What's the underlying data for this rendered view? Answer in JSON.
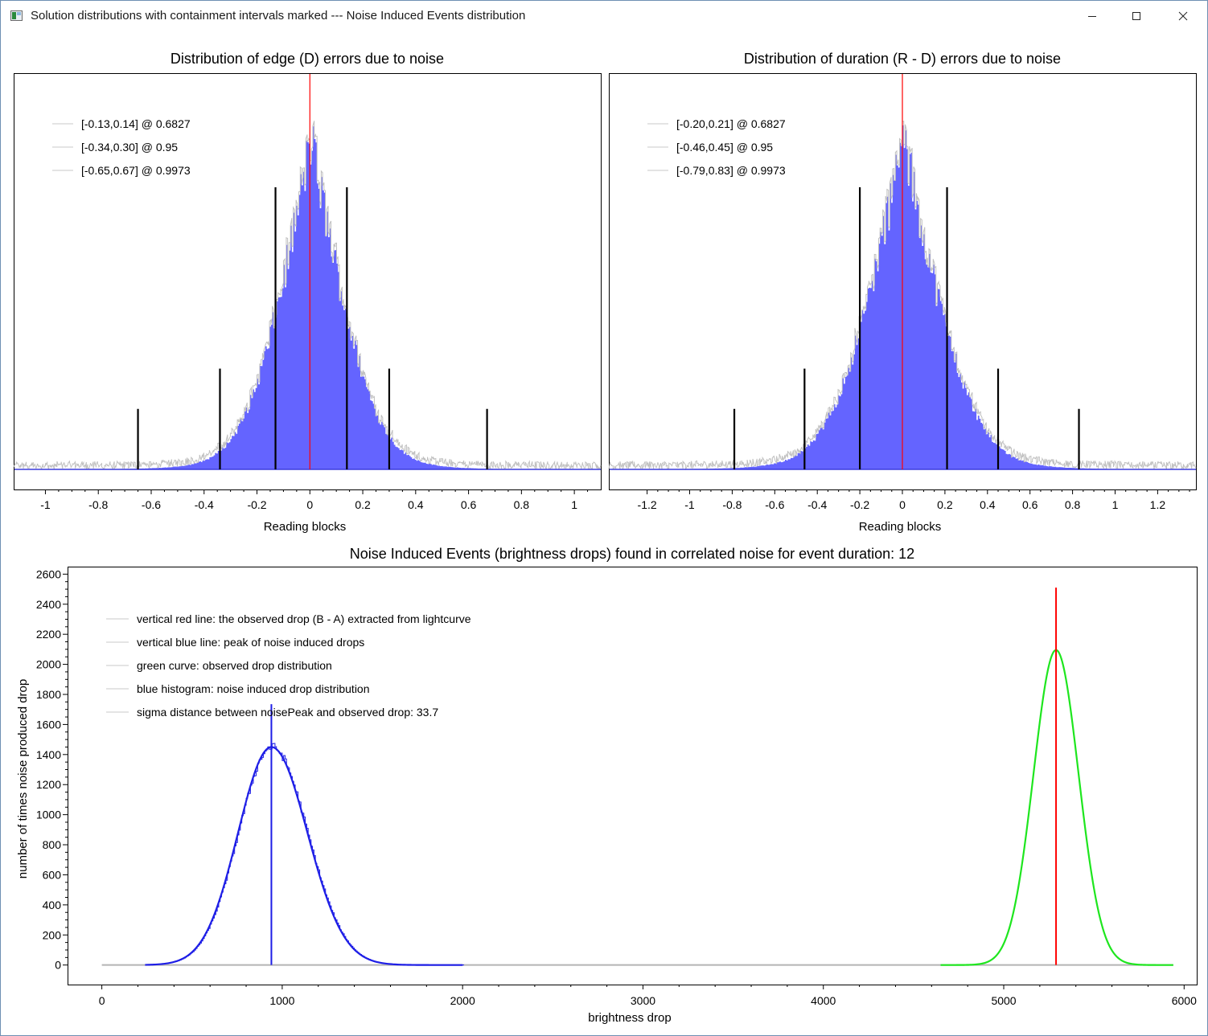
{
  "window": {
    "title": "Solution distributions with containment intervals marked --- Noise Induced Events distribution",
    "minimize_icon": "minimize-icon",
    "maximize_icon": "maximize-icon",
    "close_icon": "close-icon"
  },
  "chart_data": [
    {
      "type": "bar",
      "title": "Distribution of edge (D) errors due to noise",
      "xlabel": "Reading blocks",
      "ylabel": "",
      "xlim": [
        -1.12,
        1.1
      ],
      "xticks": [
        "-1",
        "-0.8",
        "-0.6",
        "-0.4",
        "-0.2",
        "0",
        "0.2",
        "0.4",
        "0.6",
        "0.8",
        "1"
      ],
      "grid": false,
      "legend_position": "top-left",
      "legend": [
        "[-0.13,0.14] @ 0.6827",
        "[-0.34,0.30] @ 0.95",
        "[-0.65,0.67] @ 0.9973"
      ],
      "histogram": {
        "center": 0.005,
        "sigma": 0.16,
        "color": "#6464ff",
        "outline_color": "#c0c0c0"
      },
      "zero_line": {
        "x": 0,
        "color": "#ff0000"
      },
      "interval_markers": [
        {
          "confidence": 0.6827,
          "lower": -0.13,
          "upper": 0.14,
          "height_fraction": 0.7
        },
        {
          "confidence": 0.95,
          "lower": -0.34,
          "upper": 0.3,
          "height_fraction": 0.25
        },
        {
          "confidence": 0.9973,
          "lower": -0.65,
          "upper": 0.67,
          "height_fraction": 0.15
        }
      ]
    },
    {
      "type": "bar",
      "title": "Distribution of duration (R - D) errors due to noise",
      "xlabel": "Reading blocks",
      "ylabel": "",
      "xlim": [
        -1.38,
        1.38
      ],
      "xticks": [
        "-1.2",
        "-1",
        "-0.8",
        "-0.6",
        "-0.4",
        "-0.2",
        "0",
        "0.2",
        "0.4",
        "0.6",
        "0.8",
        "1",
        "1.2"
      ],
      "grid": false,
      "legend_position": "top-left",
      "legend": [
        "[-0.20,0.21] @ 0.6827",
        "[-0.46,0.45] @ 0.95",
        "[-0.79,0.83] @ 0.9973"
      ],
      "histogram": {
        "center": 0.005,
        "sigma": 0.22,
        "color": "#6464ff",
        "outline_color": "#c0c0c0"
      },
      "zero_line": {
        "x": 0,
        "color": "#ff0000"
      },
      "interval_markers": [
        {
          "confidence": 0.6827,
          "lower": -0.2,
          "upper": 0.21,
          "height_fraction": 0.7
        },
        {
          "confidence": 0.95,
          "lower": -0.46,
          "upper": 0.45,
          "height_fraction": 0.25
        },
        {
          "confidence": 0.9973,
          "lower": -0.79,
          "upper": 0.83,
          "height_fraction": 0.15
        }
      ]
    },
    {
      "type": "line",
      "title": "Noise Induced Events (brightness drops) found in correlated noise for event duration: 12",
      "xlabel": "brightness drop",
      "ylabel": "number of times noise produced drop",
      "xlim": [
        -190,
        6070
      ],
      "ylim": [
        -130,
        2650
      ],
      "xticks": [
        "0",
        "1000",
        "2000",
        "3000",
        "4000",
        "5000",
        "6000"
      ],
      "yticks": [
        "0",
        "200",
        "400",
        "600",
        "800",
        "1000",
        "1200",
        "1400",
        "1600",
        "1800",
        "2000",
        "2200",
        "2400",
        "2600"
      ],
      "grid": false,
      "legend_position": "top-left",
      "legend": [
        "vertical red line: the observed drop (B - A) extracted from lightcurve",
        "vertical blue line: peak of noise induced drops",
        "green curve: observed drop distribution",
        "blue histogram: noise induced drop distribution",
        "sigma distance between noisePeak and observed drop: 33.7"
      ],
      "series": [
        {
          "kind": "baseline",
          "x_range": [
            0,
            5940
          ],
          "y": 0,
          "color": "#b4b4b4"
        },
        {
          "kind": "histogram",
          "center": 940,
          "peak": 1450,
          "sigma_left": 185,
          "sigma_right": 200,
          "x_range": [
            240,
            2000
          ],
          "color": "#1e1ee6"
        },
        {
          "kind": "curve",
          "center": 5290,
          "peak": 2095,
          "sigma": 125,
          "x_range": [
            4650,
            5940
          ],
          "color": "#1ee61e"
        },
        {
          "kind": "vline",
          "x": 940,
          "y_top": 1735,
          "color": "#1e1ee6"
        },
        {
          "kind": "vline",
          "x": 5290,
          "y_top": 2510,
          "color": "#ff0000"
        }
      ]
    }
  ]
}
